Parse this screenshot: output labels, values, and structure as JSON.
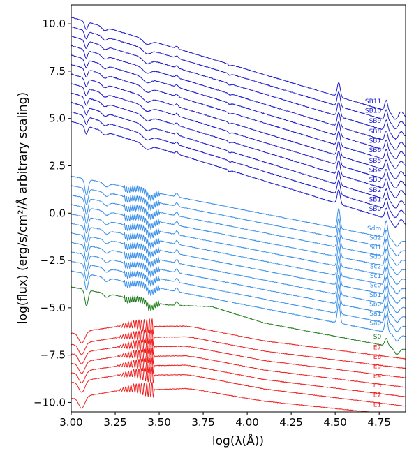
{
  "chart_data": {
    "type": "line",
    "title": "",
    "xlabel": "log(λ(Å))",
    "ylabel": "log(flux) (erg/s/cm²/Å arbitrary scaling)",
    "xlim": [
      3.0,
      4.9
    ],
    "ylim": [
      -10.5,
      11.0
    ],
    "xticks": [
      {
        "value": 3.0,
        "label": "3.00"
      },
      {
        "value": 3.25,
        "label": "3.25"
      },
      {
        "value": 3.5,
        "label": "3.50"
      },
      {
        "value": 3.75,
        "label": "3.75"
      },
      {
        "value": 4.0,
        "label": "4.00"
      },
      {
        "value": 4.25,
        "label": "4.25"
      },
      {
        "value": 4.5,
        "label": "4.50"
      },
      {
        "value": 4.75,
        "label": "4.75"
      }
    ],
    "yticks": [
      {
        "value": 10.0,
        "label": "10.0"
      },
      {
        "value": 7.5,
        "label": "7.5"
      },
      {
        "value": 5.0,
        "label": "5.0"
      },
      {
        "value": 2.5,
        "label": "2.5"
      },
      {
        "value": 0.0,
        "label": "0.0"
      },
      {
        "value": -2.5,
        "label": "−2.5"
      },
      {
        "value": -5.0,
        "label": "−5.0"
      },
      {
        "value": -7.5,
        "label": "−7.5"
      },
      {
        "value": -10.0,
        "label": "−10.0"
      }
    ],
    "grid": false,
    "legend": "none",
    "colors": {
      "starburst": "#1a1acc",
      "spiral": "#3a8fe8",
      "s0": "#1e7d1e",
      "elliptical": "#ee2020"
    },
    "series": [
      {
        "name": "SB11",
        "group": "starburst",
        "y_start": 10.35,
        "y_end": 5.1
      },
      {
        "name": "SB10",
        "group": "starburst",
        "y_start": 9.85,
        "y_end": 4.6
      },
      {
        "name": "SB9",
        "group": "starburst",
        "y_start": 9.35,
        "y_end": 4.05
      },
      {
        "name": "SB8",
        "group": "starburst",
        "y_start": 8.85,
        "y_end": 3.5
      },
      {
        "name": "SB7",
        "group": "starburst",
        "y_start": 8.35,
        "y_end": 3.0
      },
      {
        "name": "SB6",
        "group": "starburst",
        "y_start": 7.85,
        "y_end": 2.5
      },
      {
        "name": "SB5",
        "group": "starburst",
        "y_start": 7.35,
        "y_end": 1.95
      },
      {
        "name": "SB4",
        "group": "starburst",
        "y_start": 6.85,
        "y_end": 1.45
      },
      {
        "name": "SB3",
        "group": "starburst",
        "y_start": 6.35,
        "y_end": 0.95
      },
      {
        "name": "SB2",
        "group": "starburst",
        "y_start": 5.85,
        "y_end": 0.4
      },
      {
        "name": "SB1",
        "group": "starburst",
        "y_start": 5.35,
        "y_end": -0.1
      },
      {
        "name": "SB0",
        "group": "starburst",
        "y_start": 4.85,
        "y_end": -0.6
      },
      {
        "name": "Sdm",
        "group": "spiral",
        "y_start": 1.95,
        "y_end": -1.5
      },
      {
        "name": "Sd2",
        "group": "spiral",
        "y_start": 1.45,
        "y_end": -2.0
      },
      {
        "name": "Sd1",
        "group": "spiral",
        "y_start": 0.95,
        "y_end": -2.5
      },
      {
        "name": "Sd0",
        "group": "spiral",
        "y_start": 0.45,
        "y_end": -3.0
      },
      {
        "name": "Sc2",
        "group": "spiral",
        "y_start": -0.05,
        "y_end": -3.5
      },
      {
        "name": "Sc1",
        "group": "spiral",
        "y_start": -0.55,
        "y_end": -4.0
      },
      {
        "name": "Sc0",
        "group": "spiral",
        "y_start": -1.05,
        "y_end": -4.5
      },
      {
        "name": "Sb1",
        "group": "spiral",
        "y_start": -1.55,
        "y_end": -5.0
      },
      {
        "name": "Sb0",
        "group": "spiral",
        "y_start": -2.05,
        "y_end": -5.5
      },
      {
        "name": "Sa1",
        "group": "spiral",
        "y_start": -2.55,
        "y_end": -6.0
      },
      {
        "name": "Sa0",
        "group": "spiral",
        "y_start": -3.05,
        "y_end": -6.5
      },
      {
        "name": "S0",
        "group": "s0",
        "y_start": -3.9,
        "y_end": -7.2
      },
      {
        "name": "E7",
        "group": "elliptical",
        "y_start": -5.45,
        "y_end": -7.7
      },
      {
        "name": "E6",
        "group": "elliptical",
        "y_start": -6.05,
        "y_end": -8.2
      },
      {
        "name": "E5",
        "group": "elliptical",
        "y_start": -6.55,
        "y_end": -8.7
      },
      {
        "name": "E4",
        "group": "elliptical",
        "y_start": -7.05,
        "y_end": -9.2
      },
      {
        "name": "E3",
        "group": "elliptical",
        "y_start": -7.55,
        "y_end": -9.7
      },
      {
        "name": "E2",
        "group": "elliptical",
        "y_start": -8.05,
        "y_end": -10.2
      },
      {
        "name": "E1",
        "group": "elliptical",
        "y_start": -8.9,
        "y_end": -10.7
      }
    ]
  }
}
